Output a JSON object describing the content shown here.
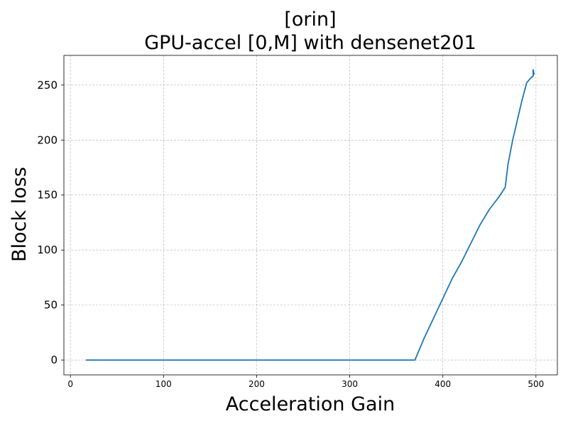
{
  "chart_data": {
    "type": "line",
    "title_line1": "[orin]",
    "title_line2": "GPU-accel [0,M] with densenet201",
    "xlabel": "Acceleration Gain",
    "ylabel": "Block loss",
    "xlim": [
      -7,
      523
    ],
    "ylim": [
      -13.5,
      277
    ],
    "xticks": [
      0,
      100,
      200,
      300,
      400,
      500
    ],
    "yticks": [
      0,
      50,
      100,
      150,
      200,
      250
    ],
    "grid": true,
    "series": [
      {
        "color": "#1f77b4",
        "x": [
          17,
          50,
          100,
          150,
          200,
          250,
          300,
          350,
          370,
          380,
          390,
          400,
          410,
          420,
          430,
          440,
          450,
          460,
          467,
          470,
          475,
          480,
          485,
          490,
          495,
          497,
          497,
          498
        ],
        "y": [
          0,
          0,
          0,
          0,
          0,
          0,
          0,
          0,
          0,
          20,
          38,
          56,
          74,
          89,
          106,
          123,
          137,
          148,
          157,
          178,
          200,
          218,
          236,
          252,
          257,
          258,
          264,
          260
        ]
      }
    ]
  }
}
